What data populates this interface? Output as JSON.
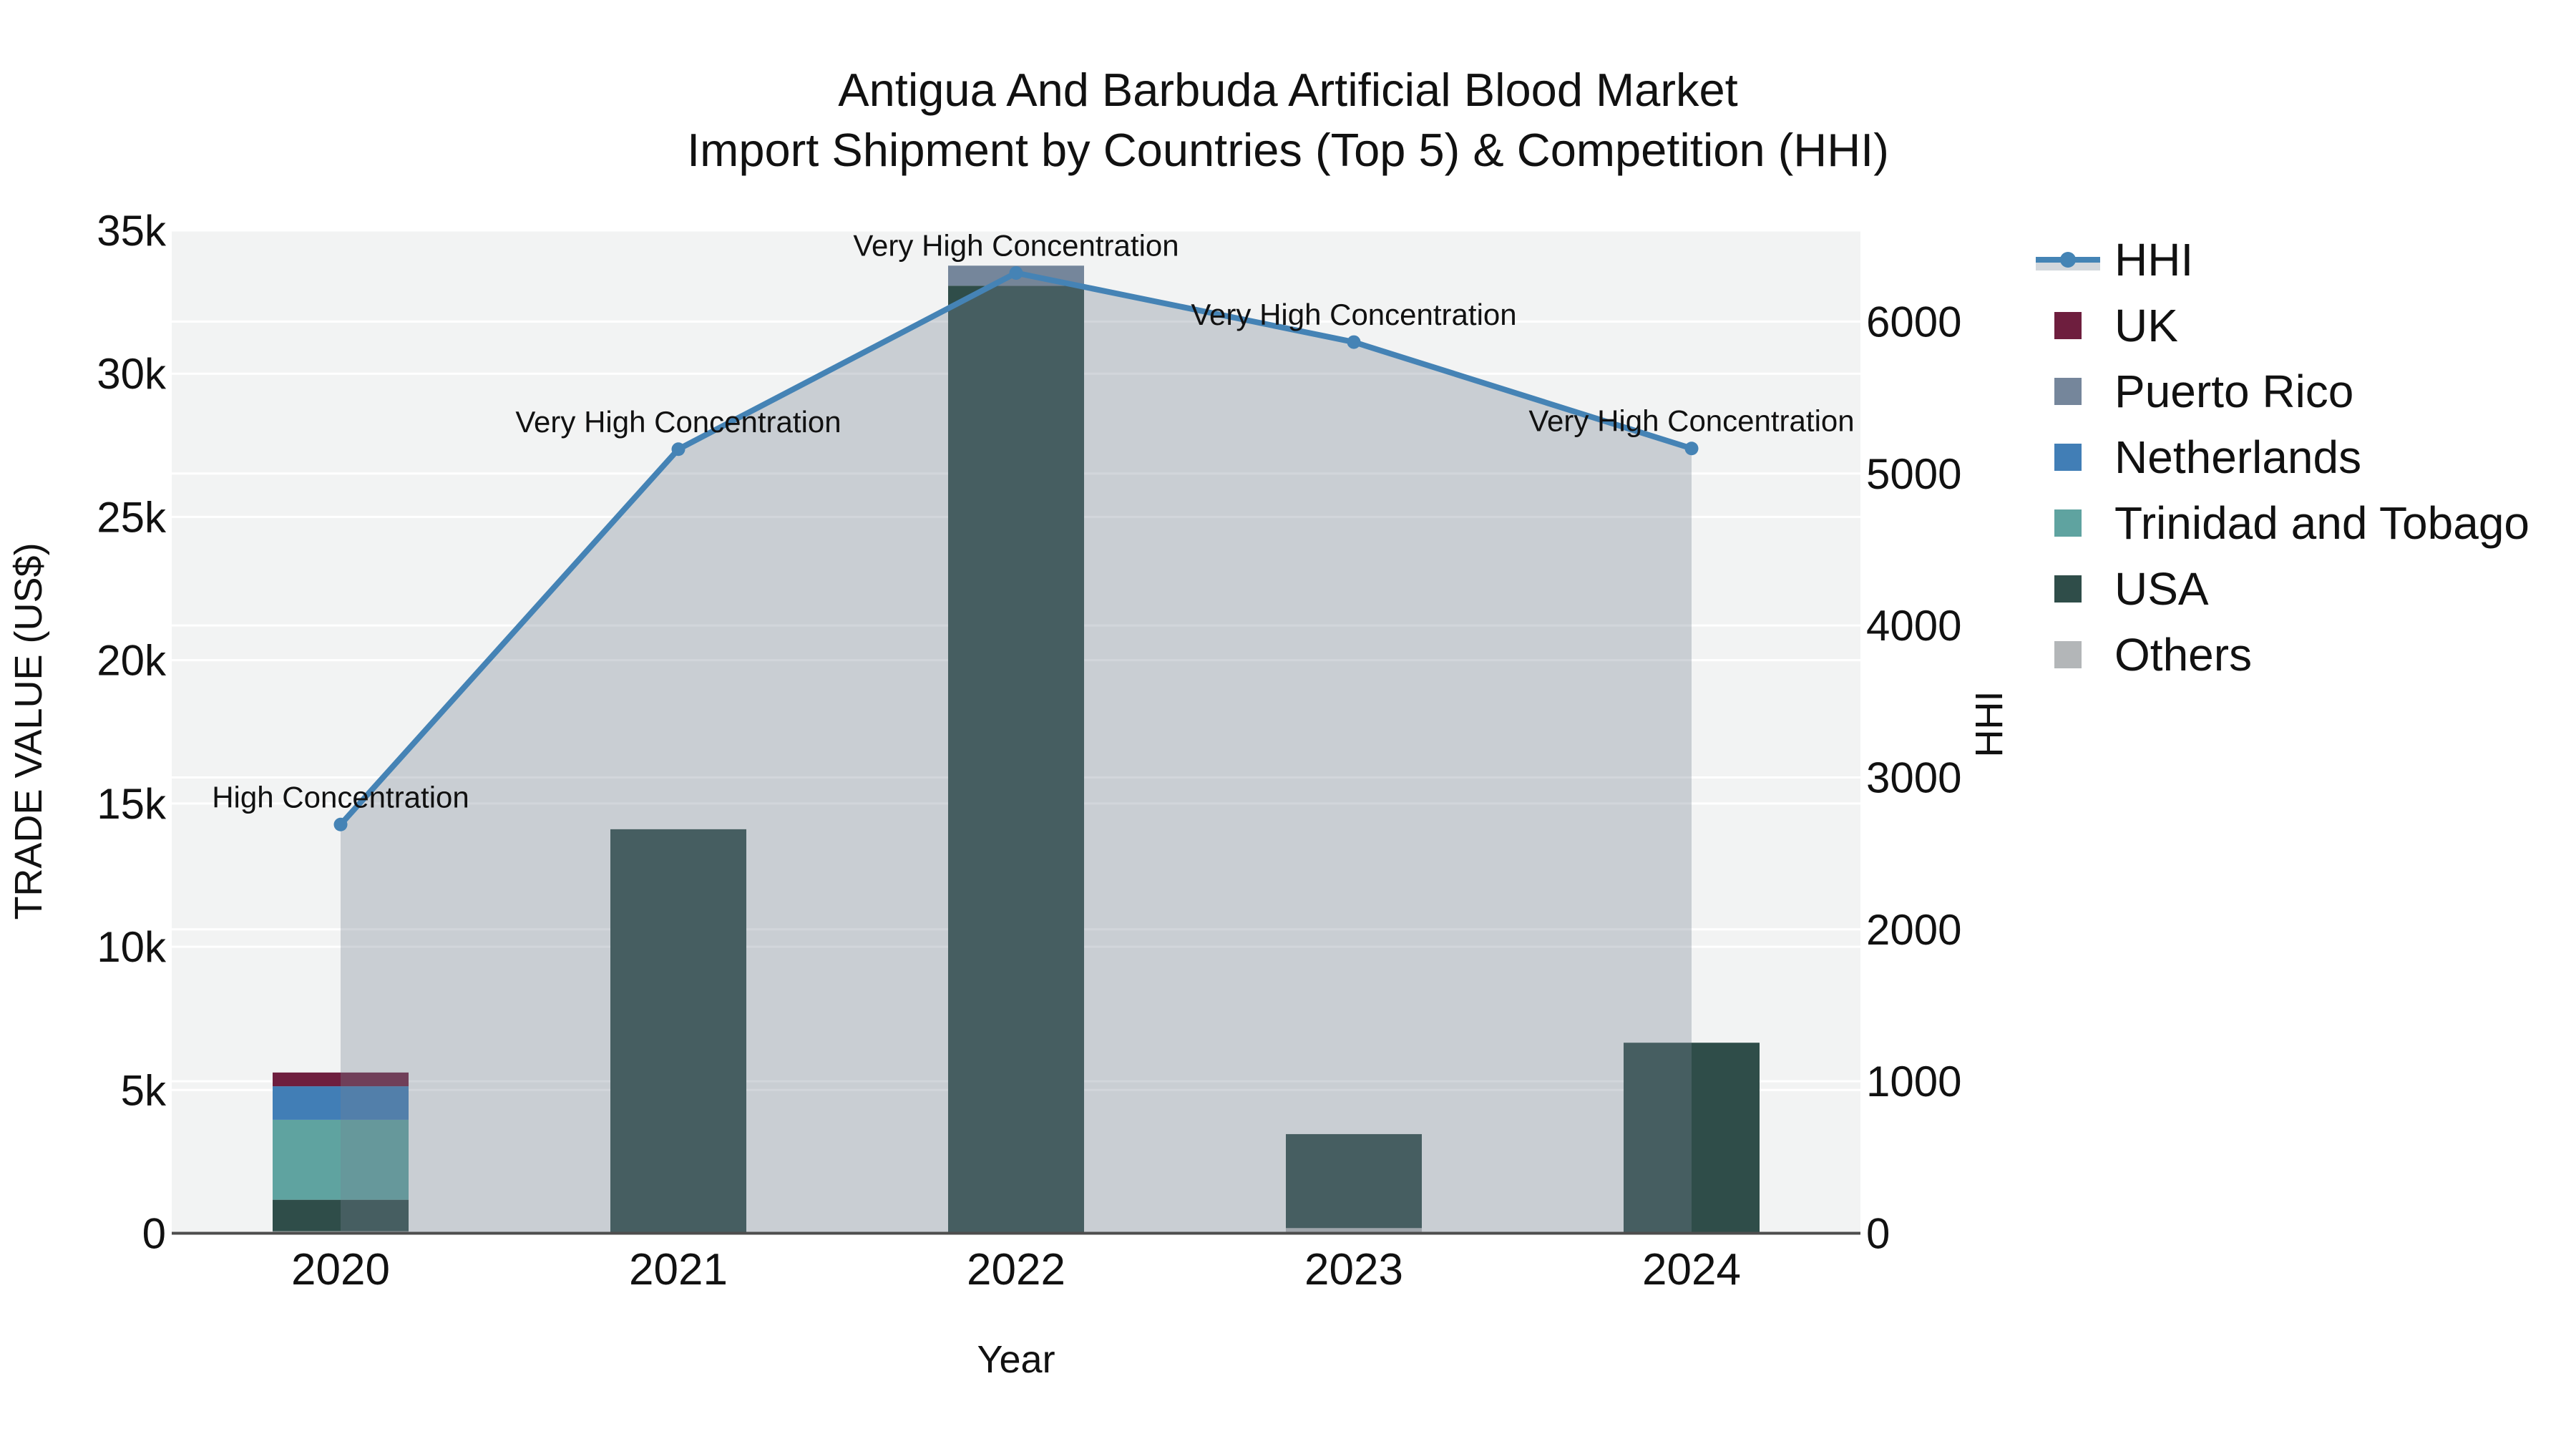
{
  "title": {
    "line1": "Antigua And Barbuda Artificial Blood Market",
    "line2": "Import Shipment by Countries (Top 5) & Competition (HHI)"
  },
  "axes": {
    "x": {
      "label": "Year",
      "ticks": [
        "2020",
        "2021",
        "2022",
        "2023",
        "2024"
      ]
    },
    "y_left": {
      "label": "TRADE VALUE (US$)",
      "ticks": [
        "0",
        "5k",
        "10k",
        "15k",
        "20k",
        "25k",
        "30k",
        "35k"
      ],
      "range": [
        0,
        35000
      ]
    },
    "y_right": {
      "label": "HHI",
      "ticks": [
        "0",
        "1000",
        "2000",
        "3000",
        "4000",
        "5000",
        "6000"
      ],
      "range": [
        0,
        6600
      ]
    }
  },
  "legend": [
    {
      "label": "HHI",
      "type": "line",
      "color": "#4484B5"
    },
    {
      "label": "UK",
      "type": "square",
      "color": "#6E1E3E"
    },
    {
      "label": "Puerto Rico",
      "type": "square",
      "color": "#75869B"
    },
    {
      "label": "Netherlands",
      "type": "square",
      "color": "#417EB6"
    },
    {
      "label": "Trinidad and Tobago",
      "type": "square",
      "color": "#5FA3A0"
    },
    {
      "label": "USA",
      "type": "square",
      "color": "#2F4D49"
    },
    {
      "label": "Others",
      "type": "square",
      "color": "#B3B6B8"
    }
  ],
  "colors": {
    "plot_bg": "#F2F3F3",
    "gridline": "#FFFFFF",
    "axis_line": "#4D4D4D",
    "hhi_line": "#4583B5",
    "hhi_area": "rgba(117,130,146,0.33)",
    "text": "#111111"
  },
  "chart_data": {
    "type": "bar+line",
    "title": "Antigua And Barbuda Artificial Blood Market — Import Shipment by Countries (Top 5) & Competition (HHI)",
    "xlabel": "Year",
    "ylabel_left": "TRADE VALUE (US$)",
    "ylabel_right": "HHI",
    "categories": [
      "2020",
      "2021",
      "2022",
      "2023",
      "2024"
    ],
    "bar_stack_order_bottom_to_top": [
      "Others",
      "USA",
      "Trinidad and Tobago",
      "Netherlands",
      "Puerto Rico",
      "UK"
    ],
    "series": [
      {
        "name": "Others",
        "color": "#B3B6B8",
        "axis": "left",
        "values": [
          70,
          0,
          0,
          180,
          0
        ]
      },
      {
        "name": "USA",
        "color": "#2F4D49",
        "axis": "left",
        "values": [
          1100,
          14100,
          33070,
          3280,
          6650
        ]
      },
      {
        "name": "Trinidad and Tobago",
        "color": "#5FA3A0",
        "axis": "left",
        "values": [
          2790,
          0,
          0,
          0,
          0
        ]
      },
      {
        "name": "Netherlands",
        "color": "#417EB6",
        "axis": "left",
        "values": [
          1170,
          0,
          0,
          0,
          0
        ]
      },
      {
        "name": "Puerto Rico",
        "color": "#75869B",
        "axis": "left",
        "values": [
          0,
          0,
          700,
          0,
          0
        ]
      },
      {
        "name": "UK",
        "color": "#6E1E3E",
        "axis": "left",
        "values": [
          480,
          0,
          0,
          0,
          0
        ]
      }
    ],
    "line": {
      "name": "HHI",
      "color": "#4583B5",
      "axis": "right",
      "values": [
        2690,
        5160,
        6320,
        5865,
        5165
      ]
    },
    "annotations": [
      "High Concentration",
      "Very High Concentration",
      "Very High Concentration",
      "Very High Concentration",
      "Very High Concentration"
    ],
    "ylim_left": [
      0,
      35000
    ],
    "ylim_right": [
      0,
      6600
    ],
    "grid": true,
    "legend_position": "right"
  }
}
